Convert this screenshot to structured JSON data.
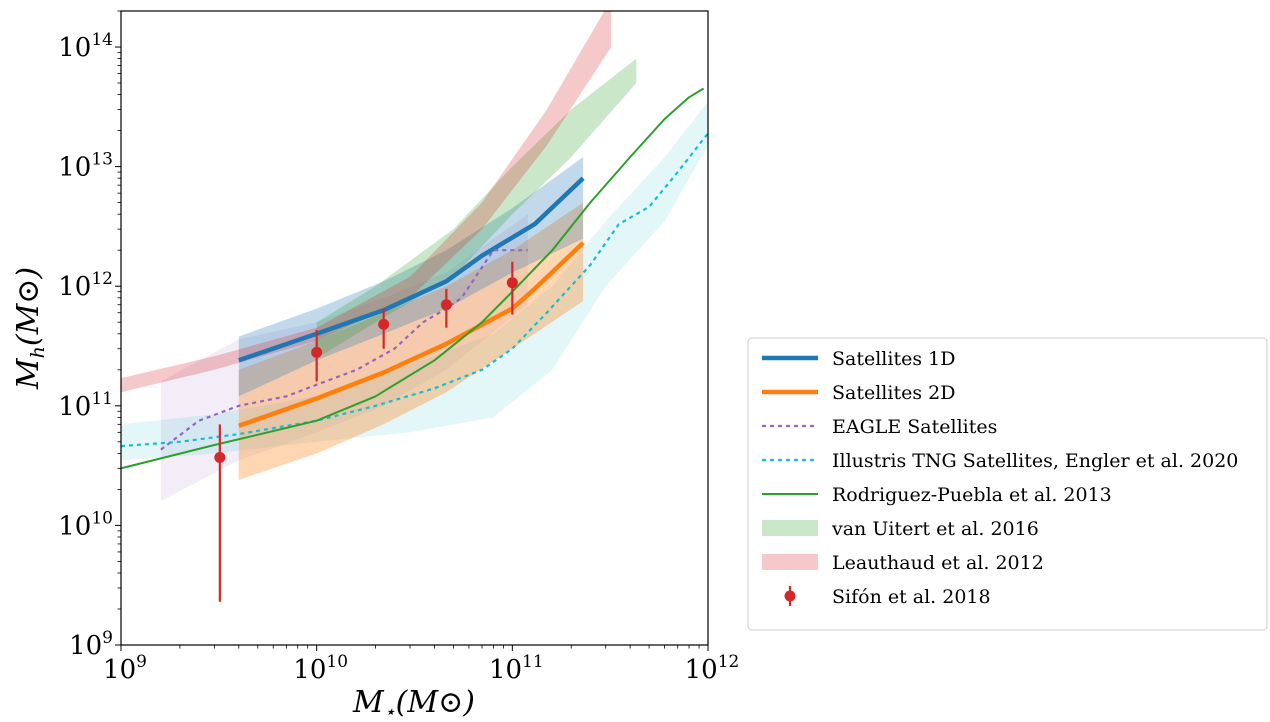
{
  "chart_data": {
    "type": "line",
    "xlabel": "M⋆(M⊙)",
    "ylabel": "Mh(M⊙)",
    "x_scale": "log",
    "y_scale": "log",
    "xlim": [
      1000000000.0,
      1000000000000.0
    ],
    "ylim": [
      1000000000.0,
      200000000000000.0
    ],
    "x_ticks": [
      {
        "base": "10",
        "exp": "9",
        "value": 1000000000.0
      },
      {
        "base": "10",
        "exp": "10",
        "value": 10000000000.0
      },
      {
        "base": "10",
        "exp": "11",
        "value": 100000000000.0
      },
      {
        "base": "10",
        "exp": "12",
        "value": 1000000000000.0
      }
    ],
    "y_ticks": [
      {
        "base": "10",
        "exp": "9",
        "value": 1000000000.0
      },
      {
        "base": "10",
        "exp": "10",
        "value": 10000000000.0
      },
      {
        "base": "10",
        "exp": "11",
        "value": 100000000000.0
      },
      {
        "base": "10",
        "exp": "12",
        "value": 1000000000000.0
      },
      {
        "base": "10",
        "exp": "13",
        "value": 10000000000000.0
      },
      {
        "base": "10",
        "exp": "14",
        "value": 100000000000000.0
      }
    ],
    "grid": false,
    "legend_position": "outside-right",
    "bands": [
      {
        "name": "EAGLE Satellites band",
        "color": "#9467bd",
        "opacity": 0.12,
        "x": [
          1600000000.0,
          4000000000.0,
          10000000000.0,
          22000000000.0,
          46000000000.0,
          120000000000.0
        ],
        "upper": [
          160000000000.0,
          360000000000.0,
          500000000000.0,
          800000000000.0,
          1300000000000.0,
          4000000000000.0
        ],
        "lower": [
          16000000000.0,
          35000000000.0,
          60000000000.0,
          100000000000.0,
          200000000000.0,
          700000000000.0
        ]
      },
      {
        "name": "Illustris TNG Satellites band",
        "color": "#17becf",
        "opacity": 0.12,
        "x": [
          1000000000.0,
          3000000000.0,
          10000000000.0,
          30000000000.0,
          80000000000.0,
          160000000000.0,
          300000000000.0,
          600000000000.0,
          1000000000000.0
        ],
        "upper": [
          70000000000.0,
          85000000000.0,
          120000000000.0,
          220000000000.0,
          400000000000.0,
          1000000000000.0,
          3500000000000.0,
          12000000000000.0,
          35000000000000.0
        ],
        "lower": [
          35000000000.0,
          40000000000.0,
          50000000000.0,
          60000000000.0,
          80000000000.0,
          200000000000.0,
          1000000000000.0,
          3500000000000.0,
          15000000000000.0
        ]
      },
      {
        "name": "Satellites 2D band",
        "color": "#ff7f0e",
        "opacity": 0.32,
        "x": [
          4000000000.0,
          10000000000.0,
          22000000000.0,
          46000000000.0,
          100000000000.0,
          230000000000.0
        ],
        "upper": [
          200000000000.0,
          350000000000.0,
          600000000000.0,
          1000000000000.0,
          2000000000000.0,
          5000000000000.0
        ],
        "lower": [
          24000000000.0,
          40000000000.0,
          70000000000.0,
          130000000000.0,
          300000000000.0,
          750000000000.0
        ]
      },
      {
        "name": "Satellites 1D band",
        "color": "#1f77b4",
        "opacity": 0.28,
        "x": [
          4000000000.0,
          10000000000.0,
          22000000000.0,
          46000000000.0,
          100000000000.0,
          230000000000.0
        ],
        "upper": [
          380000000000.0,
          650000000000.0,
          1100000000000.0,
          2000000000000.0,
          4500000000000.0,
          12000000000000.0
        ],
        "lower": [
          120000000000.0,
          240000000000.0,
          400000000000.0,
          650000000000.0,
          1300000000000.0,
          2500000000000.0
        ]
      }
    ],
    "series": [
      {
        "name": "Satellites 1D",
        "color": "#1f77b4",
        "width": 4.5,
        "dash": "",
        "x": [
          4000000000.0,
          10000000000.0,
          22000000000.0,
          46000000000.0,
          70000000000.0,
          130000000000.0,
          230000000000.0
        ],
        "y": [
          240000000000.0,
          400000000000.0,
          630000000000.0,
          1100000000000.0,
          1800000000000.0,
          3300000000000.0,
          8000000000000.0
        ]
      },
      {
        "name": "Satellites 2D",
        "color": "#ff7f0e",
        "width": 4.5,
        "dash": "",
        "x": [
          4000000000.0,
          10000000000.0,
          22000000000.0,
          46000000000.0,
          100000000000.0,
          130000000000.0,
          230000000000.0
        ],
        "y": [
          68000000000.0,
          115000000000.0,
          190000000000.0,
          330000000000.0,
          650000000000.0,
          950000000000.0,
          2300000000000.0
        ]
      },
      {
        "name": "EAGLE Satellites",
        "color": "#9467bd",
        "width": 2.2,
        "dash": "4,4",
        "x": [
          1600000000.0,
          2500000000.0,
          4000000000.0,
          7000000000.0,
          10000000000.0,
          16000000000.0,
          25000000000.0,
          35000000000.0,
          46000000000.0,
          55000000000.0,
          65000000000.0,
          80000000000.0,
          120000000000.0
        ],
        "y": [
          43000000000.0,
          75000000000.0,
          100000000000.0,
          120000000000.0,
          150000000000.0,
          200000000000.0,
          300000000000.0,
          500000000000.0,
          650000000000.0,
          800000000000.0,
          1200000000000.0,
          2000000000000.0,
          2000000000000.0
        ]
      },
      {
        "name": "Illustris TNG Satellites, Engler et al. 2020",
        "color": "#17becf",
        "width": 2.2,
        "dash": "4,4",
        "x": [
          1000000000.0,
          2000000000.0,
          4000000000.0,
          10000000000.0,
          20000000000.0,
          40000000000.0,
          70000000000.0,
          100000000000.0,
          150000000000.0,
          250000000000.0,
          350000000000.0,
          500000000000.0,
          700000000000.0,
          1000000000000.0
        ],
        "y": [
          46000000000.0,
          50000000000.0,
          58000000000.0,
          75000000000.0,
          100000000000.0,
          140000000000.0,
          200000000000.0,
          300000000000.0,
          600000000000.0,
          1500000000000.0,
          3300000000000.0,
          4600000000000.0,
          9000000000000.0,
          19000000000000.0
        ]
      },
      {
        "name": "Rodriguez-Puebla et al. 2013",
        "color": "#2ca02c",
        "width": 2,
        "dash": "",
        "x": [
          1000000000.0,
          3000000000.0,
          10000000000.0,
          20000000000.0,
          40000000000.0,
          70000000000.0,
          100000000000.0,
          160000000000.0,
          250000000000.0,
          400000000000.0,
          600000000000.0,
          800000000000.0,
          950000000000.0
        ],
        "y": [
          30000000000.0,
          47000000000.0,
          75000000000.0,
          120000000000.0,
          240000000000.0,
          500000000000.0,
          900000000000.0,
          2000000000000.0,
          5000000000000.0,
          12000000000000.0,
          25000000000000.0,
          38000000000000.0,
          45000000000000.0
        ]
      }
    ],
    "fill_only": [
      {
        "name": "van Uitert et al. 2016",
        "color": "#2ca02c",
        "opacity": 0.25,
        "x": [
          10000000000.0,
          20000000000.0,
          50000000000.0,
          100000000000.0,
          200000000000.0,
          430000000000.0
        ],
        "upper": [
          500000000000.0,
          1000000000000.0,
          3000000000000.0,
          10000000000000.0,
          30000000000000.0,
          80000000000000.0
        ],
        "lower": [
          250000000000.0,
          500000000000.0,
          1200000000000.0,
          4000000000000.0,
          12000000000000.0,
          50000000000000.0
        ]
      },
      {
        "name": "Leauthaud et al. 2012",
        "color": "#d62728",
        "opacity": 0.25,
        "x": [
          1000000000.0,
          3000000000.0,
          10000000000.0,
          30000000000.0,
          70000000000.0,
          150000000000.0,
          320000000000.0
        ],
        "upper": [
          170000000000.0,
          260000000000.0,
          450000000000.0,
          1200000000000.0,
          5000000000000.0,
          30000000000000.0,
          250000000000000.0
        ],
        "lower": [
          130000000000.0,
          200000000000.0,
          350000000000.0,
          800000000000.0,
          3000000000000.0,
          15000000000000.0,
          100000000000000.0
        ]
      }
    ],
    "points": {
      "name": "Sifón et al. 2018",
      "color": "#d62728",
      "data": [
        {
          "x": 3200000000.0,
          "y": 37000000000.0,
          "lo": 2300000000.0,
          "hi": 70000000000.0
        },
        {
          "x": 10000000000.0,
          "y": 280000000000.0,
          "lo": 160000000000.0,
          "hi": 430000000000.0
        },
        {
          "x": 22000000000.0,
          "y": 480000000000.0,
          "lo": 300000000000.0,
          "hi": 650000000000.0
        },
        {
          "x": 46000000000.0,
          "y": 700000000000.0,
          "lo": 450000000000.0,
          "hi": 950000000000.0
        },
        {
          "x": 100000000000.0,
          "y": 1070000000000.0,
          "lo": 580000000000.0,
          "hi": 1600000000000.0
        }
      ]
    },
    "legend": [
      {
        "label": "Satellites 1D",
        "kind": "line",
        "color": "#1f77b4",
        "width": 4.5,
        "dash": ""
      },
      {
        "label": "Satellites 2D",
        "kind": "line",
        "color": "#ff7f0e",
        "width": 4.5,
        "dash": ""
      },
      {
        "label": "EAGLE Satellites",
        "kind": "line",
        "color": "#9467bd",
        "width": 2.2,
        "dash": "4,4"
      },
      {
        "label": "Illustris TNG Satellites,  Engler et al. 2020",
        "kind": "line",
        "color": "#17becf",
        "width": 2.2,
        "dash": "4,4"
      },
      {
        "label": "Rodriguez-Puebla et al. 2013",
        "kind": "line",
        "color": "#2ca02c",
        "width": 2,
        "dash": ""
      },
      {
        "label": "van Uitert et al. 2016",
        "kind": "patch",
        "color": "#2ca02c",
        "opacity": 0.25
      },
      {
        "label": "Leauthaud et al. 2012",
        "kind": "patch",
        "color": "#d62728",
        "opacity": 0.25
      },
      {
        "label": "Sifón et al. 2018",
        "kind": "errorpoint",
        "color": "#d62728"
      }
    ]
  }
}
